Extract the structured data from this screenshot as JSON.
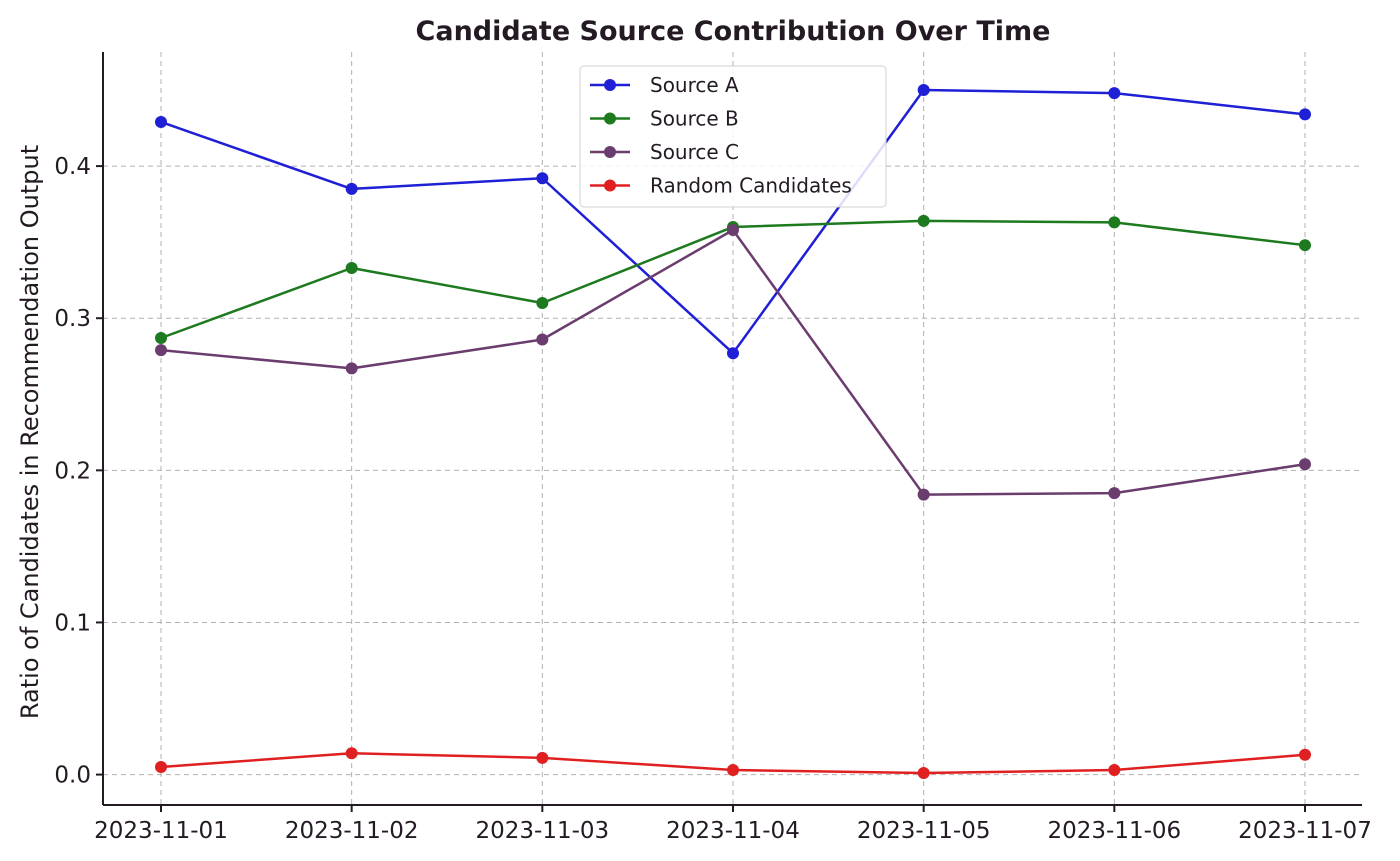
{
  "chart_data": {
    "type": "line",
    "title": "Candidate Source Contribution Over Time",
    "xlabel": "",
    "ylabel": "Ratio of Candidates in Recommendation Output",
    "categories": [
      "2023-11-01",
      "2023-11-02",
      "2023-11-03",
      "2023-11-04",
      "2023-11-05",
      "2023-11-06",
      "2023-11-07"
    ],
    "yticks": [
      "0.0",
      "0.1",
      "0.2",
      "0.3",
      "0.4"
    ],
    "ytick_values": [
      0.0,
      0.1,
      0.2,
      0.3,
      0.4
    ],
    "ylim": [
      -0.02,
      0.475
    ],
    "grid": true,
    "legend_position": "top-center",
    "series": [
      {
        "name": "Source A",
        "color": "#1f1fd6",
        "values": [
          0.429,
          0.385,
          0.392,
          0.277,
          0.45,
          0.448,
          0.434
        ]
      },
      {
        "name": "Source B",
        "color": "#1e7a1e",
        "values": [
          0.287,
          0.333,
          0.31,
          0.36,
          0.364,
          0.363,
          0.348
        ]
      },
      {
        "name": "Source C",
        "color": "#6a3d6e",
        "values": [
          0.279,
          0.267,
          0.286,
          0.358,
          0.184,
          0.185,
          0.204
        ]
      },
      {
        "name": "Random Candidates",
        "color": "#e02020",
        "values": [
          0.005,
          0.014,
          0.011,
          0.003,
          0.001,
          0.003,
          0.013
        ]
      }
    ]
  }
}
